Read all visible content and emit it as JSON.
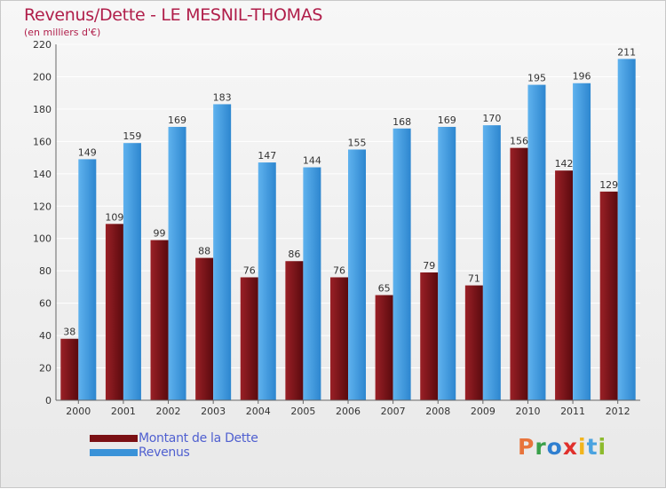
{
  "chart_data": {
    "type": "bar",
    "title": "Revenus/Dette - LE MESNIL-THOMAS",
    "subtitle": "(en milliers d'€)",
    "categories": [
      "2000",
      "2001",
      "2002",
      "2003",
      "2004",
      "2005",
      "2006",
      "2007",
      "2008",
      "2009",
      "2010",
      "2011",
      "2012"
    ],
    "series": [
      {
        "name": "Montant de la Dette",
        "color": "#7a1014",
        "values": [
          38,
          109,
          99,
          88,
          76,
          86,
          76,
          65,
          79,
          71,
          156,
          142,
          129
        ]
      },
      {
        "name": "Revenus",
        "color": "#3a92d8",
        "values": [
          149,
          159,
          169,
          183,
          147,
          144,
          155,
          168,
          169,
          170,
          195,
          196,
          211
        ]
      }
    ],
    "ylim": [
      0,
      220
    ],
    "yticks": [
      0,
      20,
      40,
      60,
      80,
      100,
      120,
      140,
      160,
      180,
      200,
      220
    ],
    "grid": true,
    "legend_position": "bottom-left"
  },
  "logo": {
    "letters": [
      "P",
      "r",
      "o",
      "x",
      "i",
      "t",
      "i"
    ],
    "colors": [
      "#e8743b",
      "#3aa04a",
      "#2f7fd0",
      "#e0302c",
      "#f2b51c",
      "#4aa3e0",
      "#8dbb2e"
    ]
  }
}
